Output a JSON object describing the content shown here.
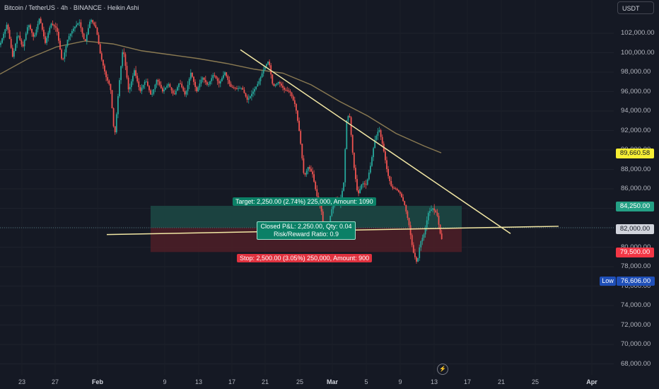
{
  "header": {
    "title": "Bitcoin / TetherUS · 4h · BINANCE · Heikin Ashi"
  },
  "currency_button": "USDT",
  "y_axis": {
    "ticks": [
      "102,000.00",
      "100,000.00",
      "98,000.00",
      "96,000.00",
      "94,000.00",
      "92,000.00",
      "90,000.00",
      "88,000.00",
      "86,000.00",
      "84,000.00",
      "82,000.00",
      "80,000.00",
      "78,000.00",
      "76,000.00",
      "74,000.00",
      "72,000.00",
      "70,000.00",
      "68,000.00"
    ],
    "tick_values": [
      102000,
      100000,
      98000,
      96000,
      94000,
      92000,
      90000,
      88000,
      86000,
      84000,
      82000,
      80000,
      78000,
      76000,
      74000,
      72000,
      70000,
      68000
    ]
  },
  "x_axis": {
    "ticks": [
      "23",
      "27",
      "Feb",
      "9",
      "13",
      "17",
      "21",
      "25",
      "Mar",
      "5",
      "9",
      "13",
      "17",
      "21",
      "25",
      "Apr"
    ],
    "bold": [
      "Feb",
      "Mar",
      "Apr"
    ]
  },
  "price_tags": {
    "ma_value": "89,660.58",
    "target": "84,250.00",
    "current": "82,000.00",
    "stop": "79,500.00",
    "low_label": "Low",
    "low_value": "76,606.00"
  },
  "position_tool": {
    "target_label": "Target: 2,250.00 (2.74%) 225,000, Amount: 1090",
    "stop_label": "Stop: 2,500.00 (3.05%) 250,000, Amount: 900",
    "pnl_line1": "Closed P&L: 2,250.00, Qty: 0.04",
    "pnl_line2": "Risk/Reward Ratio: 0.9",
    "entry": 82000,
    "target": 84250,
    "stop": 79500
  },
  "colors": {
    "background": "#151924",
    "bull": "#26a69a",
    "bear": "#ef5350",
    "ma": "#8a7a52",
    "trendline": "#f2e7a4",
    "target_zone": "#1c4a45",
    "stop_zone": "#4e1f27",
    "ma_tag": "#f7ee34",
    "target_tag": "#24a085",
    "current_tag": "#d1d4dc",
    "stop_tag": "#f23645",
    "low_tag": "#1f4fb8"
  },
  "flash_icon": "lightning-icon",
  "chart_data": {
    "type": "candlestick",
    "ylim": [
      67000,
      104000
    ],
    "price_path": [
      [
        0,
        100800
      ],
      [
        10,
        103000
      ],
      [
        18,
        99500
      ],
      [
        25,
        102000
      ],
      [
        32,
        100500
      ],
      [
        40,
        103000
      ],
      [
        48,
        101500
      ],
      [
        56,
        103600
      ],
      [
        64,
        101000
      ],
      [
        72,
        103000
      ],
      [
        80,
        102500
      ],
      [
        88,
        99000
      ],
      [
        96,
        101500
      ],
      [
        104,
        102500
      ],
      [
        112,
        103200
      ],
      [
        120,
        101000
      ],
      [
        128,
        103500
      ],
      [
        136,
        102500
      ],
      [
        142,
        99800
      ],
      [
        150,
        97500
      ],
      [
        156,
        96500
      ],
      [
        162,
        91200
      ],
      [
        168,
        96500
      ],
      [
        174,
        100600
      ],
      [
        182,
        96000
      ],
      [
        190,
        98200
      ],
      [
        198,
        96000
      ],
      [
        206,
        97200
      ],
      [
        214,
        95500
      ],
      [
        222,
        97300
      ],
      [
        230,
        96000
      ],
      [
        238,
        96800
      ],
      [
        246,
        95600
      ],
      [
        254,
        97000
      ],
      [
        262,
        95600
      ],
      [
        270,
        98000
      ],
      [
        278,
        96000
      ],
      [
        286,
        97500
      ],
      [
        294,
        96600
      ],
      [
        302,
        97800
      ],
      [
        310,
        96800
      ],
      [
        318,
        98000
      ],
      [
        326,
        96500
      ],
      [
        334,
        96300
      ],
      [
        342,
        96400
      ],
      [
        350,
        95100
      ],
      [
        358,
        96000
      ],
      [
        366,
        97000
      ],
      [
        374,
        98500
      ],
      [
        380,
        99200
      ],
      [
        386,
        96500
      ],
      [
        394,
        97000
      ],
      [
        402,
        96200
      ],
      [
        410,
        96000
      ],
      [
        418,
        94500
      ],
      [
        424,
        91500
      ],
      [
        430,
        87200
      ],
      [
        436,
        88300
      ],
      [
        442,
        87500
      ],
      [
        448,
        85300
      ],
      [
        454,
        84000
      ],
      [
        458,
        81800
      ],
      [
        462,
        80800
      ],
      [
        468,
        83600
      ],
      [
        474,
        85000
      ],
      [
        480,
        84400
      ],
      [
        486,
        86500
      ],
      [
        490,
        93000
      ],
      [
        494,
        93800
      ],
      [
        500,
        88600
      ],
      [
        506,
        85300
      ],
      [
        512,
        86600
      ],
      [
        518,
        86400
      ],
      [
        524,
        88400
      ],
      [
        530,
        91000
      ],
      [
        536,
        92200
      ],
      [
        542,
        90200
      ],
      [
        548,
        87600
      ],
      [
        554,
        86100
      ],
      [
        560,
        86000
      ],
      [
        566,
        85500
      ],
      [
        572,
        84400
      ],
      [
        578,
        82500
      ],
      [
        584,
        79600
      ],
      [
        590,
        78300
      ],
      [
        594,
        80400
      ],
      [
        600,
        81400
      ],
      [
        606,
        83600
      ],
      [
        612,
        84000
      ],
      [
        618,
        83400
      ],
      [
        624,
        80800
      ],
      [
        628,
        81000
      ]
    ],
    "ma_path": [
      [
        0,
        97800
      ],
      [
        40,
        99400
      ],
      [
        80,
        100600
      ],
      [
        120,
        101200
      ],
      [
        160,
        100900
      ],
      [
        200,
        100200
      ],
      [
        240,
        99800
      ],
      [
        280,
        99400
      ],
      [
        320,
        98900
      ],
      [
        360,
        98300
      ],
      [
        400,
        97900
      ],
      [
        440,
        96700
      ],
      [
        480,
        95000
      ],
      [
        520,
        93500
      ],
      [
        560,
        91700
      ],
      [
        600,
        90400
      ],
      [
        624,
        89700
      ]
    ],
    "trendline_1": [
      [
        340,
        100300
      ],
      [
        722,
        81400
      ]
    ],
    "trendline_2": [
      [
        151,
        81300
      ],
      [
        790,
        82150
      ]
    ]
  }
}
